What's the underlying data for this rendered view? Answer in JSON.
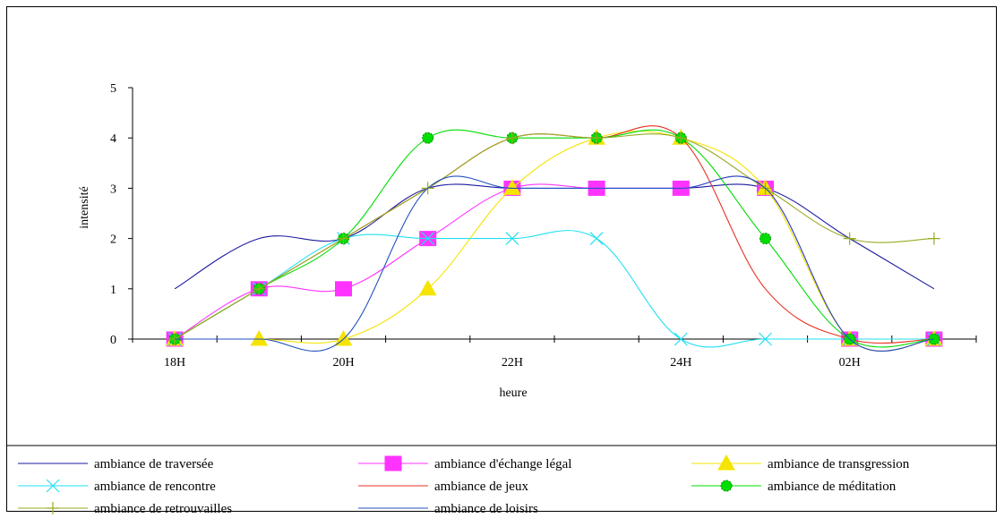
{
  "chart_data": {
    "type": "line",
    "title": "",
    "xlabel": "heure",
    "ylabel": "intensité",
    "ylim": [
      0,
      5
    ],
    "y_ticks": [
      "0",
      "1",
      "2",
      "3",
      "4",
      "5"
    ],
    "x_tick_labels": [
      "18H",
      "",
      "20H",
      "",
      "22H",
      "",
      "24H",
      "",
      "02H",
      ""
    ],
    "categories": [
      "18H",
      "19H",
      "20H",
      "21H",
      "22H",
      "23H",
      "24H",
      "01H",
      "02H",
      "03H"
    ],
    "legend_position": "bottom",
    "series": [
      {
        "name": "ambiance de traversée",
        "color": "#1a1aa0",
        "marker": "none",
        "values": [
          1,
          2,
          2,
          3,
          3,
          3,
          3,
          3,
          2,
          1
        ]
      },
      {
        "name": "ambiance d'échange légal",
        "color": "#ff33ff",
        "marker": "square",
        "values": [
          0,
          1,
          1,
          2,
          3,
          3,
          3,
          3,
          0,
          0
        ]
      },
      {
        "name": "ambiance de transgression",
        "color": "#f5e400",
        "marker": "triangle",
        "values": [
          0,
          0,
          0,
          1,
          3,
          4,
          4,
          3,
          0,
          0
        ]
      },
      {
        "name": "ambiance de rencontre",
        "color": "#22e0f0",
        "marker": "x",
        "values": [
          0,
          1,
          2,
          2,
          2,
          2,
          0,
          0,
          0,
          0
        ]
      },
      {
        "name": "ambiance de jeux",
        "color": "#e83020",
        "marker": "none",
        "values": [
          0,
          1,
          2,
          3,
          4,
          4,
          4,
          1,
          0,
          0
        ]
      },
      {
        "name": "ambiance de méditation",
        "color": "#00dd00",
        "marker": "circle",
        "values": [
          0,
          1,
          2,
          4,
          4,
          4,
          4,
          2,
          0,
          0
        ]
      },
      {
        "name": "ambiance de retrouvailles",
        "color": "#99aa22",
        "marker": "plus",
        "values": [
          0,
          1,
          2,
          3,
          4,
          4,
          4,
          3,
          2,
          2
        ]
      },
      {
        "name": "ambiance de loisirs",
        "color": "#2050c0",
        "marker": "none",
        "values": [
          0,
          0,
          0,
          3,
          3,
          3,
          3,
          3,
          0,
          0
        ]
      }
    ]
  }
}
